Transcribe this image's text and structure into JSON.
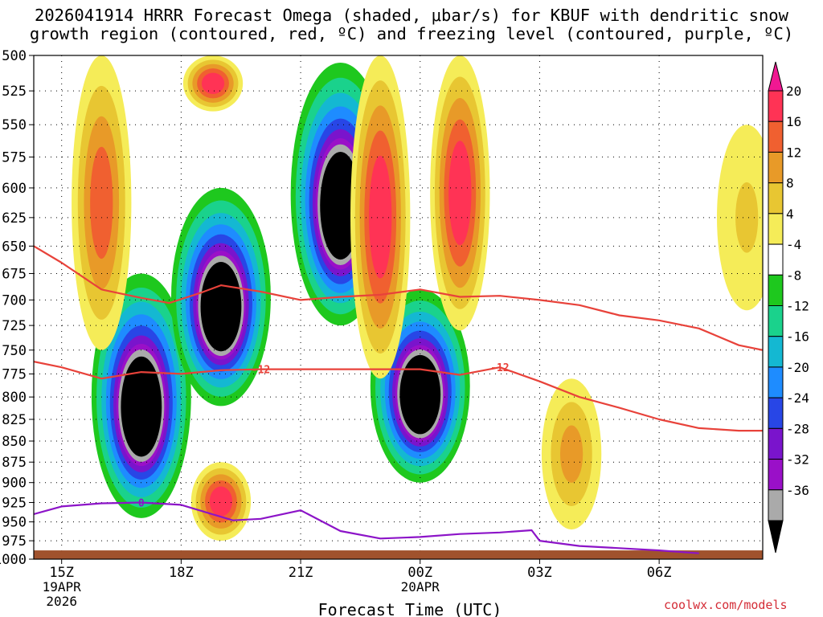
{
  "title_line1": "2026041914 HRRR Forecast Omega (shaded, μbar/s) for KBUF with dendritic snow",
  "title_line2": "growth region (contoured, red, ºC) and freezing level (contoured, purple, ºC)",
  "credit": "coolwx.com/models",
  "colors": {
    "pos20": "#ff3355",
    "pos16": "#f06030",
    "pos12": "#e89a28",
    "pos8": "#e8c632",
    "pos4": "#f5ec58",
    "neutral": "#ffffff",
    "neg4": "#1ec81e",
    "neg8": "#1ad28c",
    "neg12": "#14b8d2",
    "neg16": "#1e8cff",
    "neg20": "#2846e6",
    "neg24": "#7a14cc",
    "neg28": "#9a10c8",
    "neg32": "#aaaaaa",
    "neg36": "#000000",
    "dgz_line": "#e8423a",
    "freezing_line": "#8c14c8",
    "ground": "#a0522d"
  },
  "chart_data": {
    "type": "heatmap",
    "title": "2026041914 HRRR Forecast Omega (shaded, μbar/s) for KBUF with dendritic snow growth region (contoured, red, ºC) and freezing level (contoured, purple, ºC)",
    "xlabel": "Forecast Time (UTC)",
    "ylabel": "",
    "x_range_hours": [
      14.3,
      32.6
    ],
    "y_range_hpa": [
      500,
      1000
    ],
    "y_scale": "log-pressure",
    "grid": true,
    "x_ticks": [
      {
        "h": 15,
        "label": "15Z",
        "date": "19APR",
        "year": "2026"
      },
      {
        "h": 18,
        "label": "18Z",
        "date": "",
        "year": ""
      },
      {
        "h": 21,
        "label": "21Z",
        "date": "",
        "year": ""
      },
      {
        "h": 24,
        "label": "00Z",
        "date": "20APR",
        "year": ""
      },
      {
        "h": 27,
        "label": "03Z",
        "date": "",
        "year": ""
      },
      {
        "h": 30,
        "label": "06Z",
        "date": "",
        "year": ""
      }
    ],
    "y_ticks": [
      500,
      525,
      550,
      575,
      600,
      625,
      650,
      675,
      700,
      725,
      750,
      775,
      800,
      825,
      850,
      875,
      900,
      925,
      950,
      975,
      1000
    ],
    "colorbar_levels": [
      20,
      16,
      12,
      8,
      4,
      -4,
      -8,
      -12,
      -16,
      -20,
      -24,
      -28,
      -32,
      -36
    ],
    "omega_regions": [
      {
        "label": "ascent core",
        "t_center": 17.0,
        "p_top": 675,
        "p_bottom": 945,
        "min": -36
      },
      {
        "label": "ascent core",
        "t_center": 19.0,
        "p_top": 600,
        "p_bottom": 810,
        "min": -36
      },
      {
        "label": "ascent core",
        "t_center": 22.0,
        "p_top": 505,
        "p_bottom": 725,
        "min": -36
      },
      {
        "label": "ascent core",
        "t_center": 24.0,
        "p_top": 690,
        "p_bottom": 900,
        "min": -36
      },
      {
        "label": "subsidence",
        "t_center": 16.0,
        "p_top": 500,
        "p_bottom": 750,
        "max": 16
      },
      {
        "label": "subsidence",
        "t_center": 18.8,
        "p_top": 500,
        "p_bottom": 540,
        "max": 20
      },
      {
        "label": "subsidence",
        "t_center": 19.0,
        "p_top": 875,
        "p_bottom": 975,
        "max": 20
      },
      {
        "label": "subsidence",
        "t_center": 23.0,
        "p_top": 500,
        "p_bottom": 780,
        "max": 20
      },
      {
        "label": "subsidence",
        "t_center": 25.0,
        "p_top": 500,
        "p_bottom": 730,
        "max": 20
      },
      {
        "label": "subsidence",
        "t_center": 27.8,
        "p_top": 780,
        "p_bottom": 960,
        "max": 12
      },
      {
        "label": "subsidence",
        "t_center": 32.2,
        "p_top": 550,
        "p_bottom": 710,
        "max": 8
      }
    ],
    "dgz_label": "-12",
    "dgz_upper_line": [
      [
        14.3,
        650
      ],
      [
        15.0,
        665
      ],
      [
        16.0,
        690
      ],
      [
        17.0,
        698
      ],
      [
        17.7,
        703
      ],
      [
        18.5,
        693
      ],
      [
        19.0,
        686
      ],
      [
        20.0,
        692
      ],
      [
        21.0,
        700
      ],
      [
        22.0,
        697
      ],
      [
        23.0,
        695
      ],
      [
        24.0,
        690
      ],
      [
        25.0,
        697
      ],
      [
        26.0,
        696
      ],
      [
        27.0,
        700
      ],
      [
        28.0,
        705
      ],
      [
        29.0,
        715
      ],
      [
        30.0,
        720
      ],
      [
        31.0,
        728
      ],
      [
        32.0,
        745
      ],
      [
        32.6,
        750
      ]
    ],
    "dgz_lower_line": [
      [
        14.3,
        762
      ],
      [
        15.0,
        768
      ],
      [
        16.0,
        780
      ],
      [
        17.0,
        773
      ],
      [
        18.0,
        775
      ],
      [
        19.0,
        771
      ],
      [
        20.0,
        770
      ],
      [
        21.0,
        770
      ],
      [
        22.0,
        770
      ],
      [
        23.0,
        770
      ],
      [
        24.0,
        770
      ],
      [
        25.0,
        776
      ],
      [
        26.0,
        768
      ],
      [
        27.0,
        783
      ],
      [
        28.0,
        800
      ],
      [
        29.0,
        812
      ],
      [
        30.0,
        825
      ],
      [
        31.0,
        835
      ],
      [
        32.0,
        838
      ],
      [
        32.6,
        838
      ]
    ],
    "freezing_label": "0",
    "freezing_line": [
      [
        14.3,
        940
      ],
      [
        15.0,
        930
      ],
      [
        16.0,
        926
      ],
      [
        17.0,
        925
      ],
      [
        18.0,
        928
      ],
      [
        19.3,
        948
      ],
      [
        20.0,
        946
      ],
      [
        21.0,
        935
      ],
      [
        22.0,
        962
      ],
      [
        23.0,
        972
      ],
      [
        24.0,
        970
      ],
      [
        25.0,
        966
      ],
      [
        26.0,
        964
      ],
      [
        26.8,
        961
      ],
      [
        27.0,
        975
      ],
      [
        28.0,
        982
      ],
      [
        29.0,
        985
      ],
      [
        30.0,
        988
      ],
      [
        31.0,
        992
      ]
    ],
    "ground_pressure": 988
  }
}
